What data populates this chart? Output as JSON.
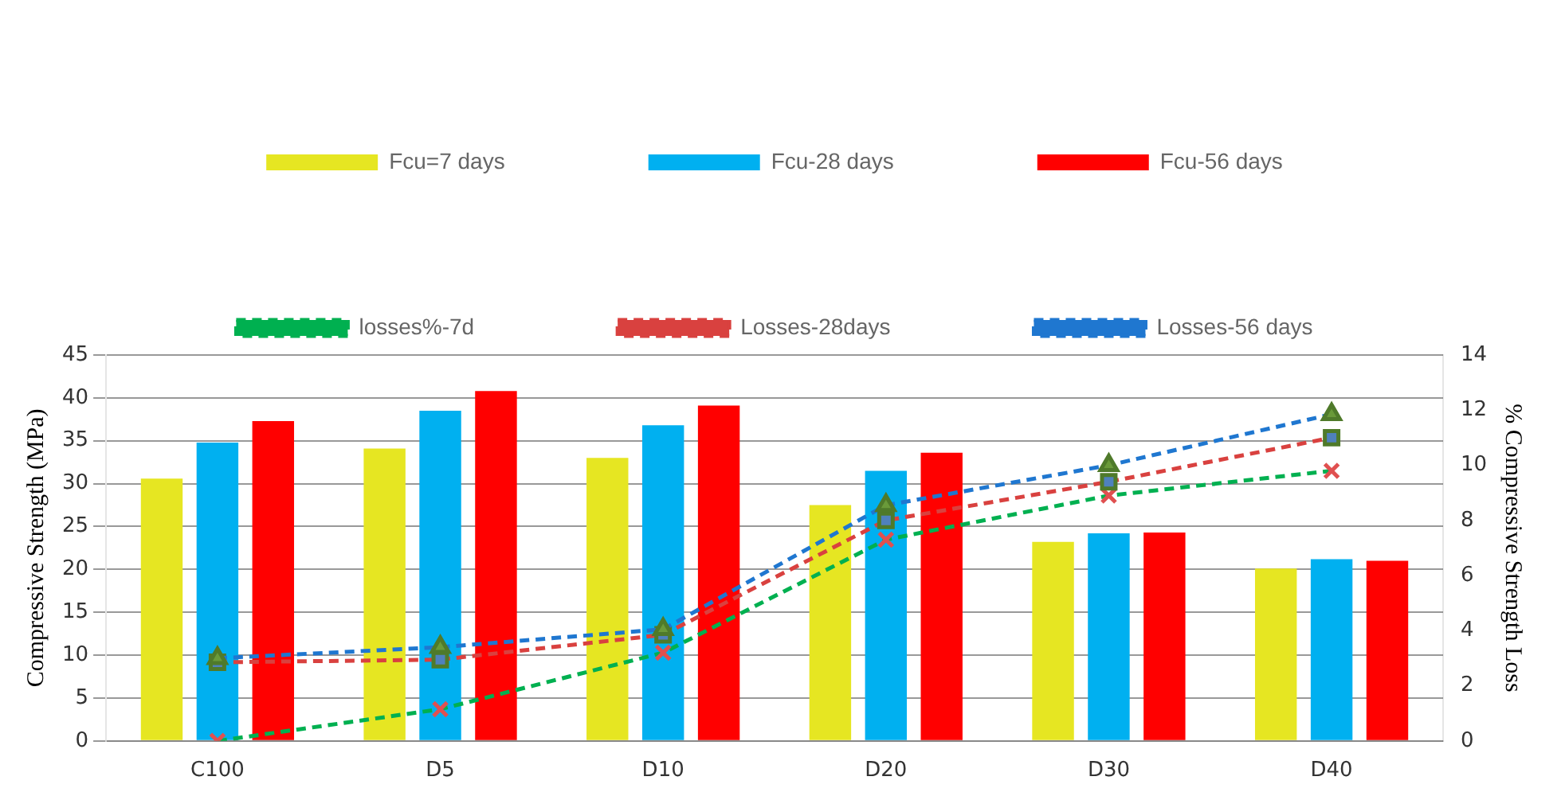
{
  "chart_data": {
    "type": "bar",
    "ylabel": "Compressive Strength (MPa)",
    "y2label": "% Compressive Strength Loss",
    "categories": [
      "C100",
      "D5",
      "D10",
      "D20",
      "D30",
      "D40"
    ],
    "series": [
      {
        "name": "Fcu=7 days",
        "color": "#e6e622",
        "values": [
          30.6,
          34.1,
          33.0,
          27.5,
          23.2,
          20.1
        ]
      },
      {
        "name": "Fcu-28 days",
        "color": "#00b0f0",
        "values": [
          34.8,
          38.5,
          36.8,
          31.5,
          24.2,
          21.2
        ]
      },
      {
        "name": "Fcu-56 days",
        "color": "#ff0000",
        "values": [
          37.3,
          40.8,
          39.1,
          33.6,
          24.3,
          21.0
        ]
      },
      {
        "name": "losses%-7d",
        "type": "line",
        "axis": "y2",
        "color": "#00b050",
        "marker": "cross",
        "line_style": "dashed",
        "values": [
          0,
          1.15,
          3.2,
          7.3,
          8.9,
          9.8
        ]
      },
      {
        "name": "Losses-28days",
        "type": "line",
        "axis": "y2",
        "color": "#d9413f",
        "marker": "square",
        "line_style": "dashed",
        "values": [
          2.85,
          2.95,
          3.85,
          8.0,
          9.4,
          11.0
        ]
      },
      {
        "name": "Losses-56 days",
        "type": "line",
        "axis": "y2",
        "color": "#1f77d0",
        "marker": "triangle",
        "line_style": "dashed",
        "values": [
          3.0,
          3.4,
          4.05,
          8.55,
          10.0,
          11.85
        ]
      }
    ],
    "ylim": [
      0,
      45
    ],
    "yticks": [
      0,
      5,
      10,
      15,
      20,
      25,
      30,
      35,
      40,
      45
    ],
    "y2lim": [
      0,
      14
    ],
    "y2ticks": [
      0,
      2,
      4,
      6,
      8,
      10,
      12,
      14
    ],
    "grid": "y",
    "legend": "top"
  }
}
